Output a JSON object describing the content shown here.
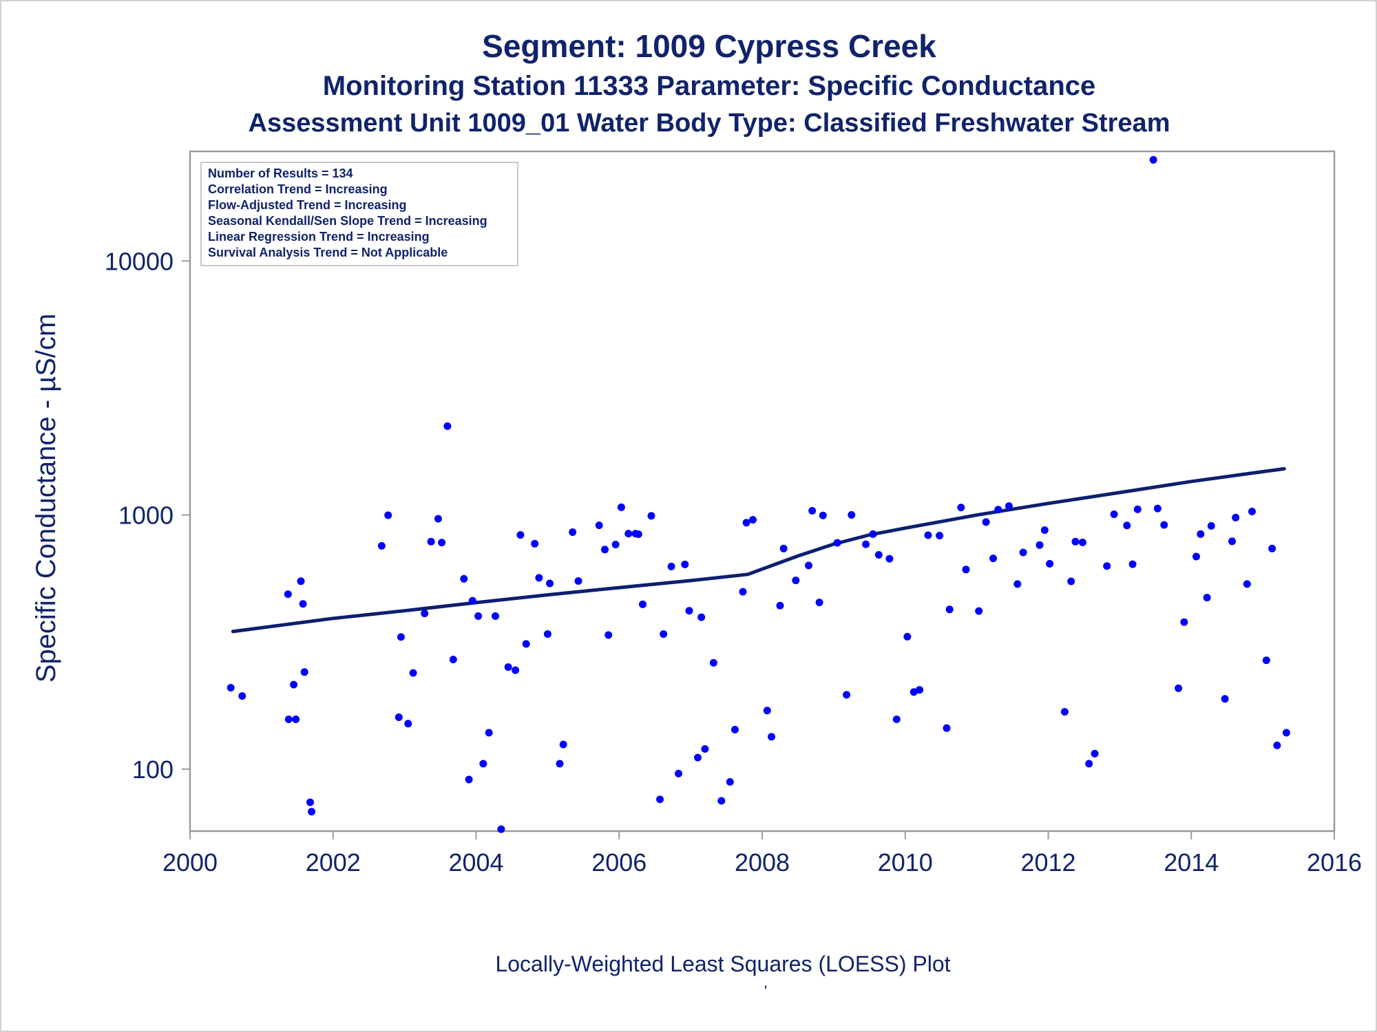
{
  "chart_data": {
    "type": "scatter",
    "title": "Segment: 1009  Cypress Creek",
    "subtitle": "Monitoring Station 11333 Parameter: Specific Conductance",
    "subtitle2": "Assessment Unit 1009_01   Water Body Type: Classified Freshwater Stream",
    "ylabel": "Specific Conductance -  µS/cm",
    "xlabel": "",
    "footnote": "Locally-Weighted Least Squares (LOESS) Plot",
    "footmark": "'",
    "y_scale": "log",
    "xlim": [
      2000,
      2016
    ],
    "ylim": [
      57,
      27000
    ],
    "x_ticks": [
      2000,
      2002,
      2004,
      2006,
      2008,
      2010,
      2012,
      2014,
      2016
    ],
    "y_ticks": [
      100,
      1000,
      10000
    ],
    "grid": false,
    "colors": {
      "points": "#0000ff",
      "trend": "#0d1f6e",
      "text": "#10236b",
      "axis": "#9a9a9a"
    },
    "stats_box": {
      "placement": "top-left",
      "lines": [
        "Number of Results = 134",
        "Correlation Trend = Increasing",
        "Flow-Adjusted Trend = Increasing",
        "Seasonal Kendall/Sen Slope Trend = Increasing",
        "Linear Regression Trend = Increasing",
        "Survival Analysis Trend = Not Applicable"
      ]
    },
    "series": [
      {
        "type": "scatter",
        "points": [
          [
            2000.57,
            209
          ],
          [
            2000.73,
            194
          ],
          [
            2001.37,
            488
          ],
          [
            2001.38,
            157
          ],
          [
            2001.45,
            215
          ],
          [
            2001.48,
            157
          ],
          [
            2001.55,
            549
          ],
          [
            2001.58,
            447
          ],
          [
            2001.6,
            241
          ],
          [
            2001.68,
            74
          ],
          [
            2001.7,
            68
          ],
          [
            2002.68,
            756
          ],
          [
            2002.77,
            998
          ],
          [
            2002.92,
            160
          ],
          [
            2002.95,
            331
          ],
          [
            2003.05,
            151
          ],
          [
            2003.12,
            239
          ],
          [
            2003.28,
            410
          ],
          [
            2003.37,
            786
          ],
          [
            2003.47,
            967
          ],
          [
            2003.52,
            779
          ],
          [
            2003.6,
            2237
          ],
          [
            2003.68,
            270
          ],
          [
            2003.83,
            561
          ],
          [
            2003.9,
            91
          ],
          [
            2003.95,
            460
          ],
          [
            2004.03,
            400
          ],
          [
            2004.1,
            105
          ],
          [
            2004.18,
            139
          ],
          [
            2004.27,
            400
          ],
          [
            2004.35,
            58
          ],
          [
            2004.45,
            252
          ],
          [
            2004.55,
            245
          ],
          [
            2004.62,
            835
          ],
          [
            2004.7,
            311
          ],
          [
            2004.82,
            771
          ],
          [
            2004.88,
            566
          ],
          [
            2005.0,
            340
          ],
          [
            2005.03,
            538
          ],
          [
            2005.17,
            105
          ],
          [
            2005.22,
            125
          ],
          [
            2005.35,
            856
          ],
          [
            2005.43,
            550
          ],
          [
            2005.72,
            911
          ],
          [
            2005.8,
            731
          ],
          [
            2005.85,
            337
          ],
          [
            2005.95,
            765
          ],
          [
            2006.03,
            1073
          ],
          [
            2006.13,
            845
          ],
          [
            2006.23,
            845
          ],
          [
            2006.27,
            840
          ],
          [
            2006.33,
            445
          ],
          [
            2006.45,
            993
          ],
          [
            2006.57,
            76
          ],
          [
            2006.62,
            340
          ],
          [
            2006.73,
            627
          ],
          [
            2006.83,
            96
          ],
          [
            2006.92,
            639
          ],
          [
            2006.98,
            420
          ],
          [
            2007.1,
            111
          ],
          [
            2007.15,
            396
          ],
          [
            2007.2,
            120
          ],
          [
            2007.32,
            262
          ],
          [
            2007.43,
            75
          ],
          [
            2007.55,
            89
          ],
          [
            2007.62,
            143
          ],
          [
            2007.73,
            499
          ],
          [
            2007.78,
            933
          ],
          [
            2007.87,
            958
          ],
          [
            2008.07,
            170
          ],
          [
            2008.13,
            134
          ],
          [
            2008.25,
            440
          ],
          [
            2008.3,
            738
          ],
          [
            2008.47,
            553
          ],
          [
            2008.65,
            633
          ],
          [
            2008.7,
            1039
          ],
          [
            2008.8,
            453
          ],
          [
            2008.85,
            996
          ],
          [
            2009.05,
            777
          ],
          [
            2009.18,
            196
          ],
          [
            2009.25,
            1001
          ],
          [
            2009.45,
            767
          ],
          [
            2009.55,
            841
          ],
          [
            2009.63,
            697
          ],
          [
            2009.78,
            673
          ],
          [
            2009.88,
            157
          ],
          [
            2010.03,
            332
          ],
          [
            2010.12,
            201
          ],
          [
            2010.2,
            205
          ],
          [
            2010.32,
            833
          ],
          [
            2010.48,
            830
          ],
          [
            2010.58,
            145
          ],
          [
            2010.62,
            425
          ],
          [
            2010.78,
            1071
          ],
          [
            2010.85,
            610
          ],
          [
            2011.03,
            419
          ],
          [
            2011.13,
            938
          ],
          [
            2011.23,
            675
          ],
          [
            2011.3,
            1050
          ],
          [
            2011.45,
            1085
          ],
          [
            2011.57,
            535
          ],
          [
            2011.65,
            712
          ],
          [
            2011.88,
            762
          ],
          [
            2011.95,
            872
          ],
          [
            2012.02,
            643
          ],
          [
            2012.23,
            168
          ],
          [
            2012.32,
            548
          ],
          [
            2012.38,
            786
          ],
          [
            2012.48,
            780
          ],
          [
            2012.57,
            105
          ],
          [
            2012.65,
            115
          ],
          [
            2012.82,
            630
          ],
          [
            2012.92,
            1007
          ],
          [
            2013.1,
            910
          ],
          [
            2013.18,
            640
          ],
          [
            2013.25,
            1053
          ],
          [
            2013.47,
            25000
          ],
          [
            2013.53,
            1061
          ],
          [
            2013.62,
            914
          ],
          [
            2013.82,
            208
          ],
          [
            2013.9,
            379
          ],
          [
            2014.07,
            686
          ],
          [
            2014.13,
            841
          ],
          [
            2014.22,
            473
          ],
          [
            2014.28,
            906
          ],
          [
            2014.47,
            189
          ],
          [
            2014.57,
            788
          ],
          [
            2014.62,
            977
          ],
          [
            2014.78,
            535
          ],
          [
            2014.85,
            1032
          ],
          [
            2015.05,
            268
          ],
          [
            2015.13,
            738
          ],
          [
            2015.2,
            124
          ],
          [
            2015.33,
            139
          ]
        ]
      },
      {
        "type": "line",
        "points": [
          [
            2000.6,
            348
          ],
          [
            2001.0,
            360
          ],
          [
            2002.0,
            392
          ],
          [
            2003.0,
            420
          ],
          [
            2004.0,
            452
          ],
          [
            2005.0,
            485
          ],
          [
            2006.0,
            518
          ],
          [
            2007.0,
            552
          ],
          [
            2007.8,
            584
          ],
          [
            2008.5,
            690
          ],
          [
            2009.0,
            768
          ],
          [
            2009.5,
            835
          ],
          [
            2010.0,
            888
          ],
          [
            2011.0,
            1000
          ],
          [
            2012.0,
            1111
          ],
          [
            2013.0,
            1226
          ],
          [
            2014.0,
            1355
          ],
          [
            2014.8,
            1455
          ],
          [
            2015.3,
            1520
          ]
        ]
      }
    ]
  }
}
